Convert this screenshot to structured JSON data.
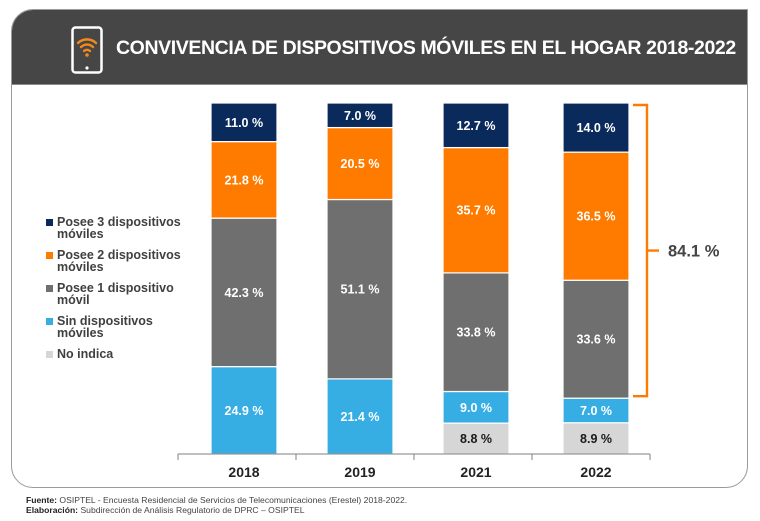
{
  "header": {
    "title": "CONVIVENCIA DE DISPOSITIVOS MÓVILES EN EL HOGAR 2018-2022",
    "icon": "smartphone-wifi-icon"
  },
  "colors": {
    "header_bg": "#464646",
    "tres": "#0b2a5c",
    "dos": "#ff7b00",
    "uno": "#6f6f6f",
    "sin": "#36aee3",
    "no_indica": "#d6d6d6",
    "bracket": "#ff7b00"
  },
  "chart_data": {
    "type": "bar",
    "stacked": true,
    "title": "CONVIVENCIA DE DISPOSITIVOS MÓVILES EN EL HOGAR 2018-2022",
    "xlabel": "",
    "ylabel": "",
    "ylim": [
      0,
      100
    ],
    "unit": "%",
    "grid": false,
    "legend_position": "left",
    "categories": [
      "2018",
      "2019",
      "2021",
      "2022"
    ],
    "series": [
      {
        "key": "no_indica",
        "name": "No indica",
        "values": [
          0,
          0,
          8.8,
          8.9
        ],
        "labels": [
          "",
          "",
          "8.8 %",
          "8.9 %"
        ],
        "label_color": "#1a1a1a"
      },
      {
        "key": "sin",
        "name": "Sin dispositivos móviles",
        "values": [
          24.9,
          21.4,
          9.0,
          7.0
        ],
        "labels": [
          "24.9 %",
          "21.4 %",
          "9.0 %",
          "7.0 %"
        ],
        "label_color": "#ffffff"
      },
      {
        "key": "uno",
        "name": "Posee 1 dispositivo móvil",
        "values": [
          42.3,
          51.1,
          33.8,
          33.6
        ],
        "labels": [
          "42.3 %",
          "51.1 %",
          "33.8 %",
          "33.6 %"
        ],
        "label_color": "#ffffff"
      },
      {
        "key": "dos",
        "name": "Posee 2 dispositivos móviles",
        "values": [
          21.8,
          20.5,
          35.7,
          36.5
        ],
        "labels": [
          "21.8 %",
          "20.5 %",
          "35.7 %",
          "36.5 %"
        ],
        "label_color": "#ffffff"
      },
      {
        "key": "tres",
        "name": "Posee 3 dispositivos móviles",
        "values": [
          11.0,
          7.0,
          12.7,
          14.0
        ],
        "labels": [
          "11.0 %",
          "7.0 %",
          "12.7 %",
          "14.0 %"
        ],
        "label_color": "#ffffff"
      }
    ],
    "annotation": {
      "text": "84.1 %",
      "category": "2022",
      "spans_series": [
        "uno",
        "dos",
        "tres"
      ]
    }
  },
  "legend": [
    {
      "key": "tres",
      "line1": "Posee 3 dispositivos",
      "line2": "móviles"
    },
    {
      "key": "dos",
      "line1": "Posee 2 dispositivos",
      "line2": "móviles"
    },
    {
      "key": "uno",
      "line1": "Posee 1 dispositivo",
      "line2": "móvil"
    },
    {
      "key": "sin",
      "line1": "Sin dispositivos",
      "line2": "móviles"
    },
    {
      "key": "no_indica",
      "line1": "No indica",
      "line2": ""
    }
  ],
  "footer": {
    "source_label": "Fuente:",
    "source_text": " OSIPTEL - Encuesta Residencial de Servicios de Telecomunicaciones (Erestel) 2018-2022.",
    "credit_label": "Elaboración:",
    "credit_text": " Subdirección de Análisis Regulatorio de DPRC – OSIPTEL"
  }
}
